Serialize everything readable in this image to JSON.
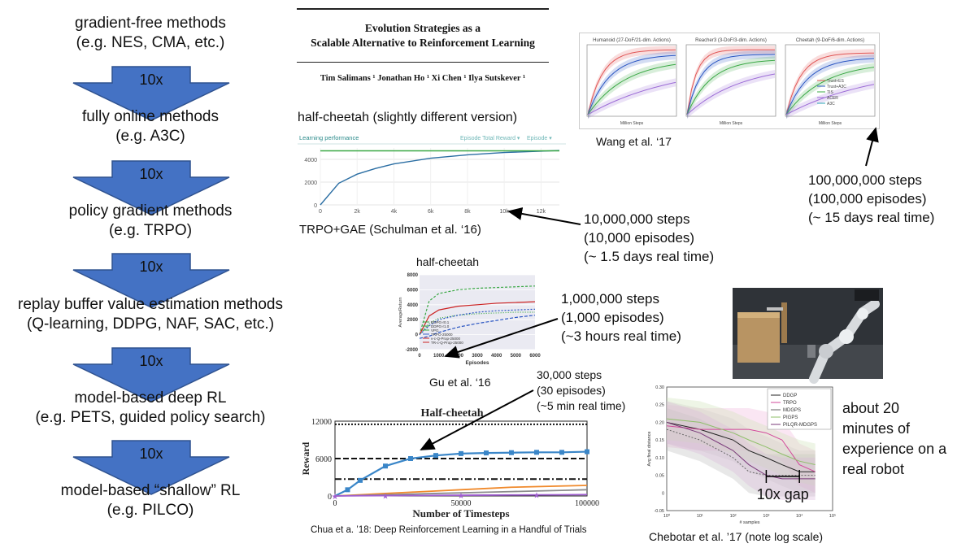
{
  "methods": [
    {
      "line1": "gradient-free methods",
      "line2": "(e.g. NES, CMA, etc.)"
    },
    {
      "line1": "fully online methods",
      "line2": "(e.g. A3C)"
    },
    {
      "line1": "policy gradient methods",
      "line2": "(e.g. TRPO)"
    },
    {
      "line1": "replay buffer value estimation methods",
      "line2": "(Q-learning, DDPG, NAF, SAC, etc.)"
    },
    {
      "line1": "model-based deep RL",
      "line2": "(e.g. PETS, guided policy search)"
    },
    {
      "line1": "model-based “shallow” RL",
      "line2": "(e.g. PILCO)"
    }
  ],
  "arrow_label": "10x",
  "colors": {
    "arrow_fill": "#4472c4",
    "arrow_stroke": "#2f528f"
  },
  "es_paper": {
    "title_line1": "Evolution Strategies as a",
    "title_line2": "Scalable Alternative to Reinforcement Learning",
    "authors": "Tim Salimans ¹  Jonathan Ho ¹  Xi Chen ¹  Ilya Sutskever ¹"
  },
  "trpo_chart": {
    "heading": "half-cheetah (slightly different version)",
    "header_left": "Learning performance",
    "header_right1": "Episode Total Reward ▾",
    "header_right2": "Episode ▾",
    "caption": "TRPO+GAE (Schulman et al. ‘16)"
  },
  "wang": {
    "panel_titles": [
      "Humanoid (27-DoF/21-dim. Actions)",
      "Reacher3 (3-DoF/3-dim. Actions)",
      "Cheetah (9-DoF/6-dim. Actions)"
    ],
    "xlabel": "Million Steps",
    "legend": [
      "Trust+ES",
      "Trust+A3C",
      "TIS",
      "ACER",
      "A3C"
    ],
    "caption": "Wang et al. ‘17"
  },
  "annotations": {
    "wang": [
      "100,000,000 steps",
      "(100,000 episodes)",
      "(~ 15 days real time)"
    ],
    "trpo": [
      "10,000,000 steps",
      "(10,000 episodes)",
      "(~ 1.5 days real time)"
    ],
    "gu": [
      "1,000,000 steps",
      "(1,000 episodes)",
      "(~3 hours real time)"
    ],
    "chua": [
      "30,000 steps",
      "(30 episodes)",
      "(~5 min real time)"
    ],
    "robot": [
      "about 20",
      "minutes of",
      "experience on a",
      "real robot"
    ]
  },
  "gu_chart": {
    "title": "half-cheetah",
    "ylabel": "AverageReturn",
    "xlabel": "Episodes",
    "legend": [
      "DDPG-r0.1",
      "DDPG-r1.0",
      "VPG",
      "TRPO-25000",
      "v-c-Q-Prop-25000",
      "TR-c-Q-Prop-25000"
    ],
    "caption": "Gu et al. ‘16"
  },
  "chua_chart": {
    "title": "Half-cheetah",
    "ylabel": "Reward",
    "xlabel": "Number of Timesteps",
    "caption": "Chua et a. ’18: Deep Reinforcement Learning in a Handful of Trials"
  },
  "chebotar_chart": {
    "ylabel": "Avg final distance",
    "xlabel": "# samples",
    "legend": [
      "DDGP",
      "TRPO",
      "MDGPS",
      "PIGPS",
      "PILQR-MDGPS"
    ],
    "gap_label": "10x gap",
    "caption": "Chebotar et al. ’17 (note log scale)"
  },
  "chart_data": [
    {
      "type": "line",
      "title": "",
      "header": "Learning performance",
      "x": [
        0,
        1000,
        2000,
        3000,
        4000,
        6000,
        8000,
        10000,
        12000,
        13000
      ],
      "series": [
        {
          "name": "",
          "values": [
            0,
            1900,
            2700,
            3200,
            3600,
            4100,
            4400,
            4600,
            4720,
            4780
          ]
        },
        {
          "name": "",
          "values": [
            4750,
            4750,
            4750,
            4750,
            4750,
            4750,
            4750,
            4750,
            4750,
            4750
          ]
        }
      ],
      "xticks": [
        "0",
        "2k",
        "4k",
        "6k",
        "8k",
        "10k",
        "12k"
      ],
      "yticks": [
        "0",
        "2000",
        "4000"
      ],
      "xlim": [
        0,
        13000
      ],
      "ylim": [
        0,
        5000
      ]
    },
    {
      "type": "line",
      "title": "half-cheetah",
      "xlabel": "Episodes",
      "ylabel": "AverageReturn",
      "x": [
        0,
        500,
        1000,
        2000,
        3000,
        4000,
        5000,
        6000
      ],
      "series": [
        {
          "name": "DDPG-r0.1",
          "values": [
            0,
            4500,
            5500,
            6000,
            6200,
            6300,
            6400,
            6500
          ]
        },
        {
          "name": "DDPG-r1.0",
          "values": [
            0,
            1500,
            2200,
            2600,
            2800,
            2900,
            3000,
            3000
          ]
        },
        {
          "name": "TR-c-Q-Prop-25000",
          "values": [
            0,
            2500,
            3300,
            3800,
            4000,
            4200,
            4300,
            4400
          ]
        },
        {
          "name": "v-c-Q-Prop-25000",
          "values": [
            0,
            1200,
            2000,
            2600,
            3000,
            3200,
            3300,
            3400
          ]
        },
        {
          "name": "TRPO-25000",
          "values": [
            -500,
            -200,
            300,
            1000,
            1500,
            1900,
            2300,
            2600
          ]
        }
      ],
      "xticks": [
        "0",
        "1000",
        "2000",
        "3000",
        "4000",
        "5000",
        "6000"
      ],
      "yticks": [
        "-2000",
        "0",
        "2000",
        "4000",
        "6000",
        "8000"
      ],
      "xlim": [
        0,
        6000
      ],
      "ylim": [
        -2000,
        8000
      ]
    },
    {
      "type": "line",
      "title": "Half-cheetah",
      "xlabel": "Number of Timesteps",
      "ylabel": "Reward",
      "x": [
        0,
        5000,
        10000,
        20000,
        30000,
        40000,
        50000,
        60000,
        70000,
        80000,
        90000,
        100000
      ],
      "series": [
        {
          "name": "",
          "values": [
            0,
            1000,
            2500,
            4800,
            6000,
            6500,
            6800,
            6900,
            6950,
            7000,
            7000,
            7100
          ]
        },
        {
          "name": "",
          "values": [
            0,
            100,
            200,
            400,
            600,
            800,
            1000,
            1200,
            1400,
            1500,
            1600,
            1700
          ]
        },
        {
          "name": "",
          "values": [
            0,
            50,
            100,
            200,
            300,
            400,
            500,
            600,
            700,
            800,
            900,
            1000
          ]
        },
        {
          "name": "",
          "values": [
            0,
            20,
            40,
            60,
            80,
            100,
            120,
            140,
            160,
            180,
            200,
            220
          ]
        }
      ],
      "reference_lines": [
        11500,
        6000,
        2700
      ],
      "xticks": [
        "0",
        "50000",
        "100000"
      ],
      "yticks": [
        "0",
        "6000",
        "12000"
      ],
      "xlim": [
        0,
        100000
      ],
      "ylim": [
        0,
        12000
      ]
    },
    {
      "type": "line",
      "title": "",
      "xlabel": "# samples",
      "ylabel": "Avg final distance",
      "xscale": "log",
      "x": [
        1,
        10,
        100,
        300,
        1000,
        3000,
        10000,
        30000
      ],
      "series": [
        {
          "name": "DDGP",
          "values": [
            0.2,
            0.18,
            0.15,
            0.12,
            0.1,
            0.08,
            0.06,
            0.06
          ]
        },
        {
          "name": "TRPO",
          "values": [
            0.19,
            0.18,
            0.18,
            0.18,
            0.17,
            0.15,
            0.08,
            0.06
          ]
        },
        {
          "name": "MDGPS",
          "values": [
            0.18,
            0.15,
            0.1,
            0.06,
            0.05,
            0.05,
            0.05,
            0.05
          ]
        },
        {
          "name": "PIGPS",
          "values": [
            0.21,
            0.2,
            0.17,
            0.15,
            0.13,
            0.11,
            0.09,
            0.08
          ]
        },
        {
          "name": "PILQR-MDGPS",
          "values": [
            0.2,
            0.17,
            0.12,
            0.08,
            0.05,
            0.04,
            0.04,
            0.04
          ]
        }
      ],
      "xticks": [
        "10⁰",
        "10¹",
        "10²",
        "10³",
        "10⁴",
        "10⁵"
      ],
      "yticks": [
        "-0.05",
        "0",
        "0.05",
        "0.10",
        "0.15",
        "0.20",
        "0.25",
        "0.30"
      ],
      "xlim": [
        1,
        100000
      ],
      "ylim": [
        -0.05,
        0.3
      ]
    }
  ]
}
